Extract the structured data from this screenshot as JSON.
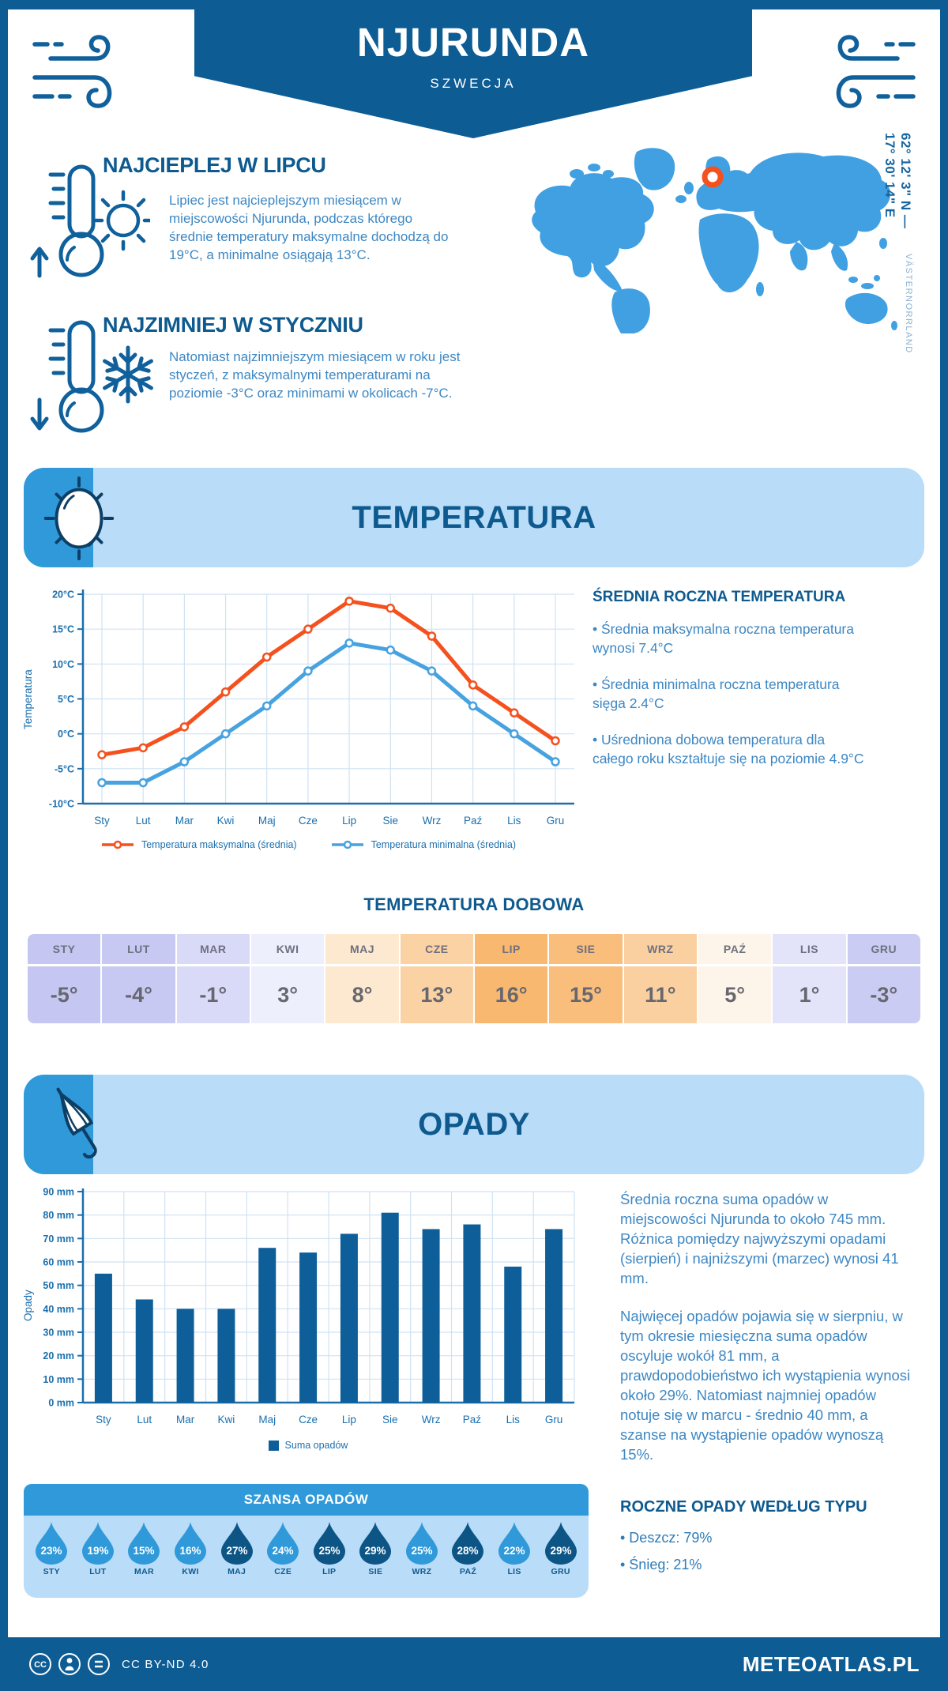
{
  "header": {
    "title": "NJURUNDA",
    "subtitle": "SZWECJA"
  },
  "highlights": [
    {
      "title": "NAJCIEPLEJ W LIPCU",
      "text": "Lipiec jest najcieplejszym miesiącem w miejscowości Njurunda, podczas którego średnie temperatury maksymalne dochodzą do 19°C, a minimalne osiągają 13°C."
    },
    {
      "title": "NAJZIMNIEJ W STYCZNIU",
      "text": "Natomiast najzimniejszym miesiącem w roku jest styczeń, z maksymalnymi temperaturami na poziomie -3°C oraz minimami w okolicach -7°C."
    }
  ],
  "map": {
    "coordinates": "62° 12' 3\" N — 17° 30' 14\" E",
    "region": "VÄSTERNORRLAND"
  },
  "sections": {
    "temperature": {
      "title": "TEMPERATURA"
    },
    "precipitation": {
      "title": "OPADY"
    }
  },
  "chart_data": [
    {
      "type": "line",
      "title": "Temperatura",
      "ylabel": "Temperatura",
      "categories": [
        "Sty",
        "Lut",
        "Mar",
        "Kwi",
        "Maj",
        "Cze",
        "Lip",
        "Sie",
        "Wrz",
        "Paź",
        "Lis",
        "Gru"
      ],
      "series": [
        {
          "name": "Temperatura maksymalna (średnia)",
          "color": "#f4511e",
          "values": [
            -3,
            -2,
            1,
            6,
            11,
            15,
            19,
            18,
            14,
            7,
            3,
            -1
          ]
        },
        {
          "name": "Temperatura minimalna (średnia)",
          "color": "#47a2e0",
          "values": [
            -7,
            -7,
            -4,
            0,
            4,
            9,
            13,
            12,
            9,
            4,
            0,
            -4
          ]
        }
      ],
      "ylim": [
        -10,
        20
      ],
      "ytick_step": 5,
      "ytick_suffix": "°C",
      "grid": true,
      "legend_position": "bottom"
    },
    {
      "type": "bar",
      "title": "Opady",
      "ylabel": "Opady",
      "categories": [
        "Sty",
        "Lut",
        "Mar",
        "Kwi",
        "Maj",
        "Cze",
        "Lip",
        "Sie",
        "Wrz",
        "Paź",
        "Lis",
        "Gru"
      ],
      "series": [
        {
          "name": "Suma opadów",
          "color": "#0e5e99",
          "values": [
            55,
            44,
            40,
            40,
            66,
            64,
            72,
            81,
            74,
            76,
            58,
            74
          ]
        }
      ],
      "ylim": [
        0,
        90
      ],
      "ytick_step": 10,
      "ytick_suffix": " mm",
      "grid": true,
      "legend_position": "bottom"
    }
  ],
  "annual_temperature": {
    "title": "ŚREDNIA ROCZNA TEMPERATURA",
    "bullets": [
      "• Średnia maksymalna roczna temperatura wynosi 7.4°C",
      "• Średnia minimalna roczna temperatura sięga 2.4°C",
      "• Uśredniona dobowa temperatura dla całego roku kształtuje się na poziomie 4.9°C"
    ]
  },
  "daily_temperature": {
    "title": "TEMPERATURA DOBOWA",
    "months": [
      "STY",
      "LUT",
      "MAR",
      "KWI",
      "MAJ",
      "CZE",
      "LIP",
      "SIE",
      "WRZ",
      "PAŹ",
      "LIS",
      "GRU"
    ],
    "values": [
      "-5°",
      "-4°",
      "-1°",
      "3°",
      "8°",
      "13°",
      "16°",
      "15°",
      "11°",
      "5°",
      "1°",
      "-3°"
    ],
    "cell_colors": [
      "#c5c6f1",
      "#c8c9f2",
      "#d9daf7",
      "#edeffc",
      "#fde8d0",
      "#fbd2a4",
      "#f8b870",
      "#f9bd7c",
      "#fbd0a0",
      "#fdf5e9",
      "#e3e4f9",
      "#cbccf3"
    ]
  },
  "precipitation_text": {
    "paragraphs": [
      "Średnia roczna suma opadów w miejscowości Njurunda to około 745 mm. Różnica pomiędzy najwyższymi opadami (sierpień) i najniższymi (marzec) wynosi 41 mm.",
      "Najwięcej opadów pojawia się w sierpniu, w tym okresie miesięczna suma opadów oscyluje wokół 81 mm, a prawdopodobieństwo ich wystąpienia wynosi około 29%. Natomiast najmniej opadów notuje się w marcu - średnio 40 mm, a szanse na wystąpienie opadów wynoszą 15%."
    ]
  },
  "precipitation_chance": {
    "title": "SZANSA OPADÓW",
    "months": [
      "STY",
      "LUT",
      "MAR",
      "KWI",
      "MAJ",
      "CZE",
      "LIP",
      "SIE",
      "WRZ",
      "PAŹ",
      "LIS",
      "GRU"
    ],
    "values": [
      "23%",
      "19%",
      "15%",
      "16%",
      "27%",
      "24%",
      "25%",
      "29%",
      "25%",
      "28%",
      "22%",
      "29%"
    ],
    "dark": [
      false,
      false,
      false,
      false,
      true,
      false,
      true,
      true,
      false,
      true,
      false,
      true
    ]
  },
  "precipitation_type": {
    "title": "ROCZNE OPADY WEDŁUG TYPU",
    "bullets": [
      "• Deszcz: 79%",
      "• Śnieg: 21%"
    ]
  },
  "footer": {
    "license": "CC BY-ND 4.0",
    "brand": "METEOATLAS.PL"
  },
  "colors": {
    "primary": "#0d5c94",
    "heading": "#0e5a8f",
    "body_text": "#3d87c3",
    "banner_bg": "#b9dcf8",
    "accent": "#2f99d9",
    "map": "#41a0e2",
    "marker": "#f4511e",
    "axis": "#1a6fae",
    "grid": "#cfe2f3",
    "bar": "#0e5e99",
    "drop_light": "#2f99d9",
    "drop_dark": "#0d5585",
    "table_text": "#6f7080"
  }
}
